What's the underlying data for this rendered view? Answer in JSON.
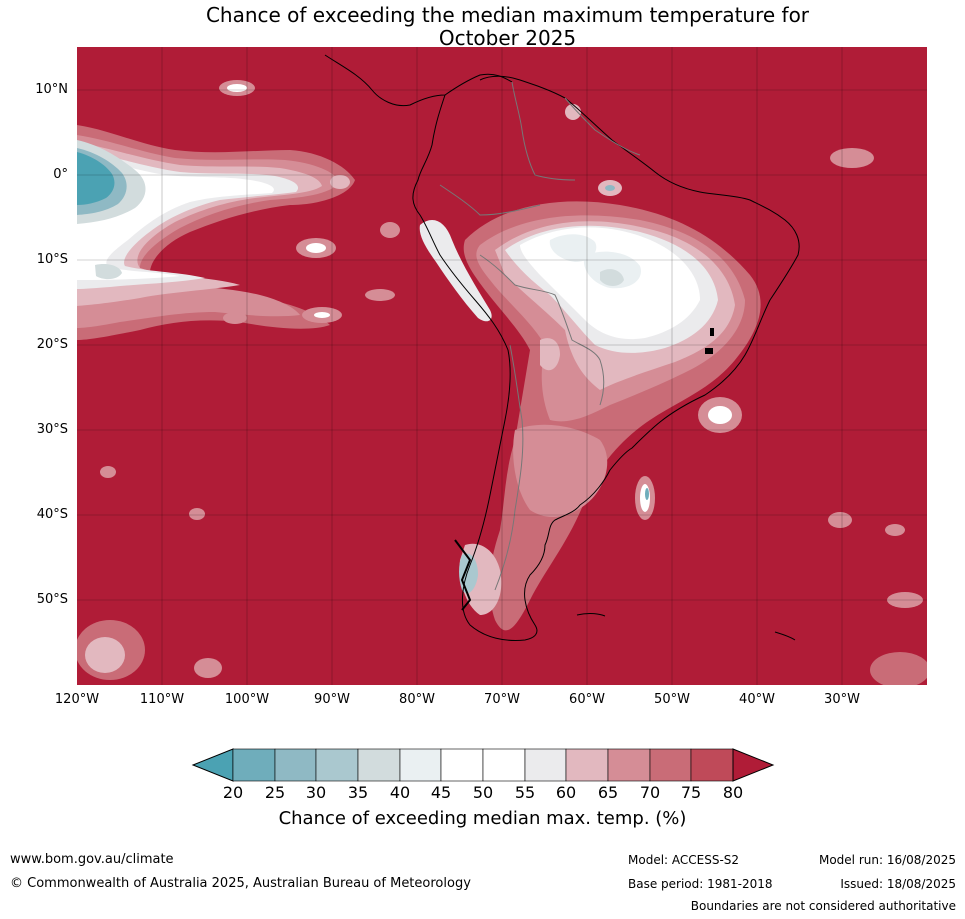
{
  "title_line1": "Chance of exceeding the median maximum temperature for",
  "title_line2": "October 2025",
  "lat_labels": [
    "10°N",
    "0°",
    "10°S",
    "20°S",
    "30°S",
    "40°S",
    "50°S"
  ],
  "lon_labels": [
    "120°W",
    "110°W",
    "100°W",
    "90°W",
    "80°W",
    "70°W",
    "60°W",
    "50°W",
    "40°W",
    "30°W"
  ],
  "colorbar": {
    "ticks": [
      "20",
      "25",
      "30",
      "35",
      "40",
      "45",
      "50",
      "55",
      "60",
      "65",
      "70",
      "75",
      "80"
    ],
    "colors": [
      "#4ba2b3",
      "#6fadbb",
      "#8fb9c4",
      "#aac8cf",
      "#d2dcdd",
      "#eaf0f2",
      "#ffffff",
      "#ffffff",
      "#ebebed",
      "#e2b8bf",
      "#d58d96",
      "#c96c77",
      "#bf4a59",
      "#b01c37"
    ],
    "label": "Chance of exceeding median max. temp. (%)"
  },
  "footer": {
    "website": "www.bom.gov.au/climate",
    "copyright": "© Commonwealth of Australia 2025, Australian Bureau of Meteorology",
    "model": "Model: ACCESS-S2",
    "base_period": "Base period: 1981-2018",
    "model_run": "Model run: 16/08/2025",
    "issued": "Issued: 18/08/2025",
    "disclaimer": "Boundaries are not considered authoritative"
  }
}
